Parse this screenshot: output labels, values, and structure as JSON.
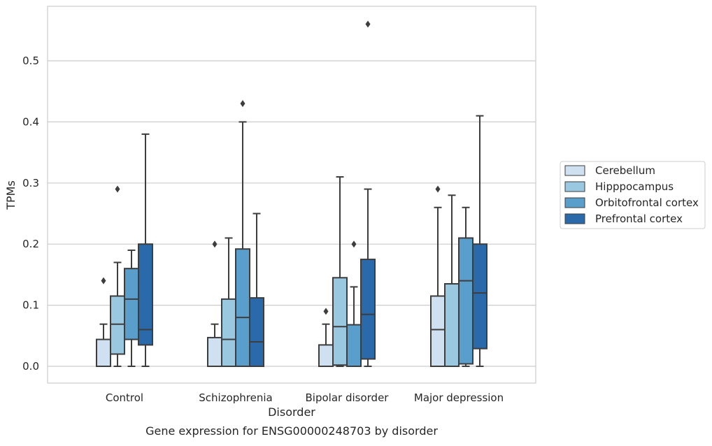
{
  "caption": "Gene expression for ENSG00000248703 by disorder",
  "chart_data": {
    "type": "box",
    "title": "",
    "xlabel": "Disorder",
    "ylabel": "TPMs",
    "ylim": [
      -0.028,
      0.587
    ],
    "yticks": [
      0.0,
      0.1,
      0.2,
      0.3,
      0.4,
      0.5
    ],
    "ytick_labels": [
      "0.0",
      "0.1",
      "0.2",
      "0.3",
      "0.4",
      "0.5"
    ],
    "grid": "horizontal",
    "legend_position": "right",
    "categories": [
      "Control",
      "Schizophrenia",
      "Bipolar disorder",
      "Major depression"
    ],
    "series": [
      {
        "name": "Cerebellum",
        "color": "#cfe0f1",
        "boxes": [
          {
            "whisker_low": 0.0,
            "q1": 0.0,
            "median": 0.0,
            "q3": 0.044,
            "whisker_high": 0.069,
            "outliers": [
              0.14
            ]
          },
          {
            "whisker_low": 0.0,
            "q1": 0.0,
            "median": 0.0,
            "q3": 0.047,
            "whisker_high": 0.069,
            "outliers": [
              0.2
            ]
          },
          {
            "whisker_low": 0.0,
            "q1": 0.0,
            "median": 0.0,
            "q3": 0.035,
            "whisker_high": 0.069,
            "outliers": [
              0.09
            ]
          },
          {
            "whisker_low": 0.0,
            "q1": 0.0,
            "median": 0.06,
            "q3": 0.115,
            "whisker_high": 0.26,
            "outliers": [
              0.29
            ]
          }
        ]
      },
      {
        "name": "Hipppocampus",
        "color": "#9ac8e0",
        "boxes": [
          {
            "whisker_low": 0.0,
            "q1": 0.02,
            "median": 0.069,
            "q3": 0.115,
            "whisker_high": 0.17,
            "outliers": [
              0.29
            ]
          },
          {
            "whisker_low": 0.0,
            "q1": 0.0,
            "median": 0.044,
            "q3": 0.11,
            "whisker_high": 0.21,
            "outliers": []
          },
          {
            "whisker_low": 0.0,
            "q1": 0.002,
            "median": 0.065,
            "q3": 0.145,
            "whisker_high": 0.31,
            "outliers": []
          },
          {
            "whisker_low": 0.0,
            "q1": 0.0,
            "median": 0.135,
            "q3": 0.135,
            "whisker_high": 0.28,
            "outliers": []
          }
        ]
      },
      {
        "name": "Orbitofrontal cortex",
        "color": "#5a9fcc",
        "boxes": [
          {
            "whisker_low": 0.0,
            "q1": 0.044,
            "median": 0.11,
            "q3": 0.16,
            "whisker_high": 0.19,
            "outliers": []
          },
          {
            "whisker_low": 0.0,
            "q1": 0.0,
            "median": 0.08,
            "q3": 0.192,
            "whisker_high": 0.4,
            "outliers": [
              0.43
            ]
          },
          {
            "whisker_low": 0.0,
            "q1": 0.0,
            "median": 0.0,
            "q3": 0.068,
            "whisker_high": 0.13,
            "outliers": [
              0.2
            ]
          },
          {
            "whisker_low": 0.0,
            "q1": 0.004,
            "median": 0.14,
            "q3": 0.21,
            "whisker_high": 0.26,
            "outliers": []
          }
        ]
      },
      {
        "name": "Prefrontal cortex",
        "color": "#2a6aab",
        "boxes": [
          {
            "whisker_low": 0.0,
            "q1": 0.035,
            "median": 0.06,
            "q3": 0.2,
            "whisker_high": 0.38,
            "outliers": []
          },
          {
            "whisker_low": 0.0,
            "q1": 0.0,
            "median": 0.04,
            "q3": 0.112,
            "whisker_high": 0.25,
            "outliers": []
          },
          {
            "whisker_low": 0.0,
            "q1": 0.012,
            "median": 0.085,
            "q3": 0.175,
            "whisker_high": 0.29,
            "outliers": [
              0.56
            ]
          },
          {
            "whisker_low": 0.0,
            "q1": 0.029,
            "median": 0.12,
            "q3": 0.2,
            "whisker_high": 0.41,
            "outliers": []
          }
        ]
      }
    ]
  }
}
